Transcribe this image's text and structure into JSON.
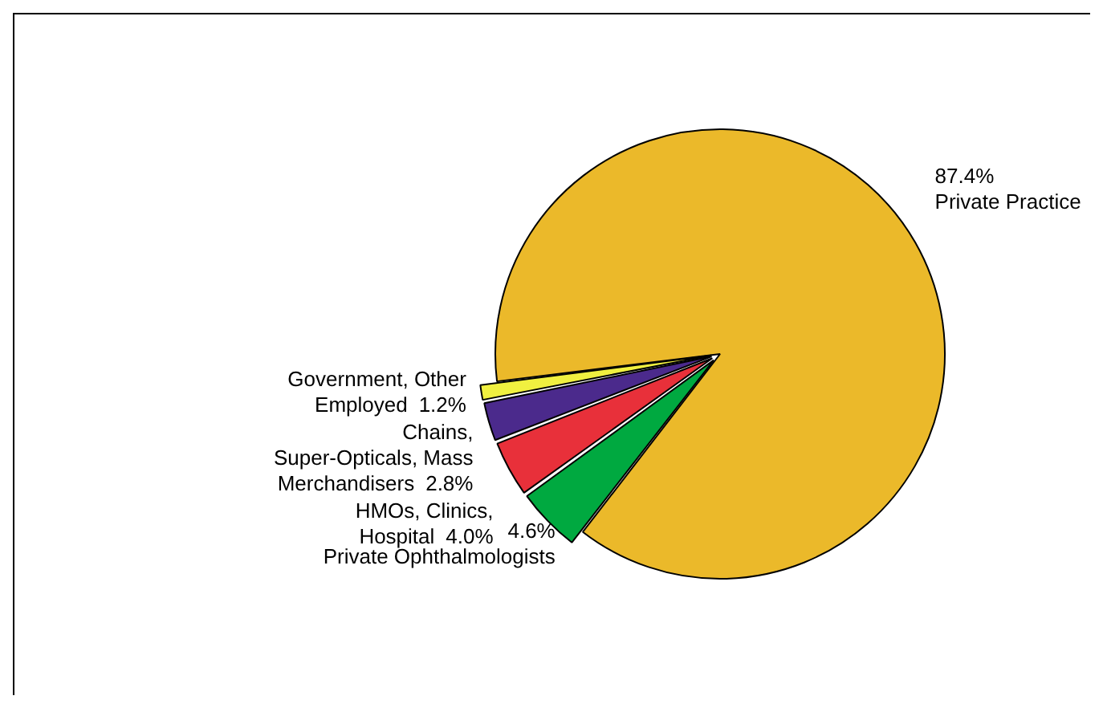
{
  "chart_data": {
    "type": "pie",
    "categories": [
      "Private Practice",
      "Private Ophthalmologists",
      "HMOs, Clinics, Hospital",
      "Chains, Super-Opticals, Mass Merchandisers",
      "Government, Other Employed"
    ],
    "values": [
      87.4,
      4.6,
      4.0,
      2.8,
      1.2
    ],
    "value_labels": [
      "87.4%",
      "4.6%",
      "4.0%",
      "2.8%",
      "1.2%"
    ],
    "colors": [
      "#ebb92a",
      "#00a940",
      "#e8303a",
      "#4b2a8c",
      "#f0f040"
    ]
  }
}
